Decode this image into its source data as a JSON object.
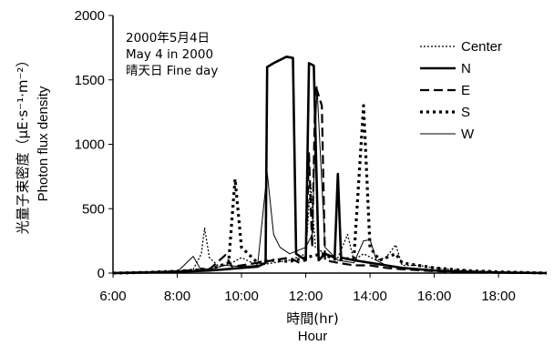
{
  "chart_data": {
    "type": "line",
    "xlabel": "時間(hr)",
    "xlabel_en": "Hour",
    "ylabel": "光量子束密度（μE·s⁻¹·m⁻²）",
    "ylabel_en": "Photon flux density",
    "annotations": [
      "2000年5月4日",
      "May 4 in 2000",
      "晴天日 Fine day"
    ],
    "xlim": [
      6,
      19.5
    ],
    "ylim": [
      0,
      2000
    ],
    "x_ticks": [
      "6:00",
      "8:00",
      "10:00",
      "12:00",
      "14:00",
      "16:00",
      "18:00"
    ],
    "y_ticks": [
      "0",
      "500",
      "1000",
      "1500",
      "2000"
    ],
    "grid": false,
    "legend_position": "right",
    "series": [
      {
        "name": "Center",
        "style": "dotted",
        "points": [
          [
            6,
            0
          ],
          [
            7,
            2
          ],
          [
            8,
            10
          ],
          [
            8.5,
            30
          ],
          [
            8.75,
            150
          ],
          [
            8.85,
            350
          ],
          [
            9,
            120
          ],
          [
            9.3,
            50
          ],
          [
            9.7,
            80
          ],
          [
            10,
            120
          ],
          [
            10.5,
            60
          ],
          [
            11,
            80
          ],
          [
            11.5,
            100
          ],
          [
            12,
            150
          ],
          [
            12.15,
            700
          ],
          [
            12.3,
            200
          ],
          [
            12.6,
            150
          ],
          [
            13,
            120
          ],
          [
            13.3,
            300
          ],
          [
            13.5,
            100
          ],
          [
            13.8,
            150
          ],
          [
            14.2,
            100
          ],
          [
            14.5,
            120
          ],
          [
            14.8,
            220
          ],
          [
            15,
            60
          ],
          [
            15.5,
            60
          ],
          [
            16,
            40
          ],
          [
            17,
            20
          ],
          [
            18,
            10
          ],
          [
            19.5,
            0
          ]
        ]
      },
      {
        "name": "N",
        "style": "solid-thick",
        "points": [
          [
            6,
            0
          ],
          [
            7,
            5
          ],
          [
            8,
            10
          ],
          [
            9,
            20
          ],
          [
            9.5,
            30
          ],
          [
            10,
            40
          ],
          [
            10.5,
            50
          ],
          [
            10.75,
            80
          ],
          [
            10.8,
            1600
          ],
          [
            11,
            1630
          ],
          [
            11.4,
            1680
          ],
          [
            11.6,
            1670
          ],
          [
            11.7,
            150
          ],
          [
            12,
            100
          ],
          [
            12.1,
            1630
          ],
          [
            12.25,
            1610
          ],
          [
            12.4,
            100
          ],
          [
            12.6,
            150
          ],
          [
            12.9,
            120
          ],
          [
            13,
            770
          ],
          [
            13.1,
            120
          ],
          [
            13.5,
            100
          ],
          [
            14,
            80
          ],
          [
            14.5,
            60
          ],
          [
            15,
            40
          ],
          [
            16,
            20
          ],
          [
            17,
            10
          ],
          [
            18,
            5
          ],
          [
            19.5,
            0
          ]
        ]
      },
      {
        "name": "E",
        "style": "dashed",
        "points": [
          [
            6,
            0
          ],
          [
            7,
            5
          ],
          [
            8,
            15
          ],
          [
            9,
            30
          ],
          [
            9.5,
            140
          ],
          [
            9.7,
            50
          ],
          [
            10,
            60
          ],
          [
            10.5,
            80
          ],
          [
            11,
            100
          ],
          [
            11.5,
            120
          ],
          [
            11.8,
            80
          ],
          [
            12,
            100
          ],
          [
            12.1,
            930
          ],
          [
            12.2,
            200
          ],
          [
            12.3,
            1460
          ],
          [
            12.5,
            1300
          ],
          [
            12.6,
            100
          ],
          [
            13,
            80
          ],
          [
            13.5,
            60
          ],
          [
            14,
            60
          ],
          [
            14.5,
            40
          ],
          [
            15,
            30
          ],
          [
            16,
            15
          ],
          [
            17,
            5
          ],
          [
            19.5,
            0
          ]
        ]
      },
      {
        "name": "S",
        "style": "dotted-thick",
        "points": [
          [
            6,
            0
          ],
          [
            7,
            5
          ],
          [
            8,
            15
          ],
          [
            9,
            30
          ],
          [
            9.6,
            80
          ],
          [
            9.8,
            730
          ],
          [
            10,
            200
          ],
          [
            10.5,
            80
          ],
          [
            11,
            100
          ],
          [
            11.5,
            90
          ],
          [
            12,
            120
          ],
          [
            12.5,
            150
          ],
          [
            13,
            100
          ],
          [
            13.5,
            120
          ],
          [
            13.8,
            1300
          ],
          [
            14,
            200
          ],
          [
            14.3,
            100
          ],
          [
            14.8,
            150
          ],
          [
            15,
            80
          ],
          [
            15.5,
            60
          ],
          [
            16,
            40
          ],
          [
            17,
            20
          ],
          [
            18,
            10
          ],
          [
            19.5,
            0
          ]
        ]
      },
      {
        "name": "W",
        "style": "solid-thin",
        "points": [
          [
            6,
            0
          ],
          [
            7,
            5
          ],
          [
            8,
            10
          ],
          [
            8.5,
            130
          ],
          [
            8.7,
            40
          ],
          [
            9,
            30
          ],
          [
            9.5,
            60
          ],
          [
            10,
            50
          ],
          [
            10.5,
            60
          ],
          [
            10.8,
            780
          ],
          [
            11,
            300
          ],
          [
            11.2,
            200
          ],
          [
            11.5,
            150
          ],
          [
            12,
            200
          ],
          [
            12.2,
            300
          ],
          [
            12.35,
            1450
          ],
          [
            12.6,
            200
          ],
          [
            13,
            100
          ],
          [
            13.5,
            80
          ],
          [
            13.8,
            250
          ],
          [
            14,
            260
          ],
          [
            14.2,
            100
          ],
          [
            14.5,
            60
          ],
          [
            15,
            40
          ],
          [
            16,
            20
          ],
          [
            17,
            10
          ],
          [
            18,
            5
          ],
          [
            19.5,
            0
          ]
        ]
      }
    ]
  }
}
